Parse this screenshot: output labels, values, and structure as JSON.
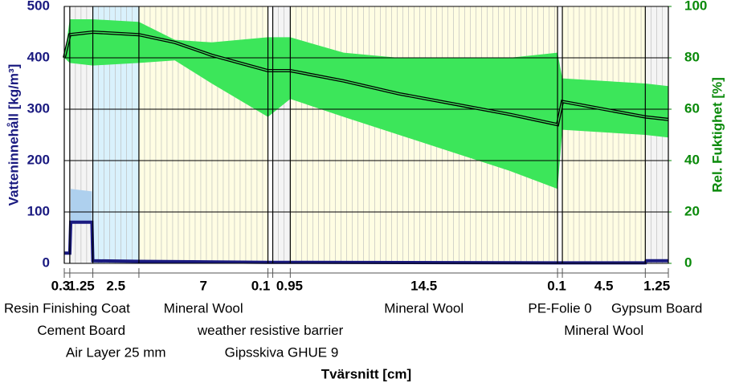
{
  "chart_data": {
    "type": "layered-profile",
    "y_label": "Vatteninnehåll [kg/m³]",
    "y2_label": "Rel. Fuktighet [%]",
    "x_label": "Tvärsnitt [cm]",
    "ylim": [
      0,
      500
    ],
    "yticks": [
      0,
      100,
      200,
      300,
      400,
      500
    ],
    "y2lim": [
      0,
      100
    ],
    "y2ticks": [
      0,
      20,
      40,
      60,
      80,
      100
    ],
    "grid": true,
    "layers": [
      {
        "name": "Resin Finishing Coat",
        "thickness": 0.3,
        "color": "#ffffff"
      },
      {
        "name": "Cement Board",
        "thickness": 1.25,
        "color": "#f4f4f4"
      },
      {
        "name": "Air Layer 25 mm",
        "thickness": 2.5,
        "color": "#d9f1fc"
      },
      {
        "name": "Mineral Wool",
        "thickness": 7,
        "color": "#fffde3"
      },
      {
        "name": "weather resistive barrier",
        "thickness": 0.1,
        "color": "#ffffff"
      },
      {
        "name": "Gipsskiva GHUE 9",
        "thickness": 0.95,
        "color": "#f4f4f4"
      },
      {
        "name": "Mineral Wool",
        "thickness": 14.5,
        "color": "#fffde3"
      },
      {
        "name": "PE-Folie 0",
        "thickness": 0.1,
        "color": "#ffffff"
      },
      {
        "name": "Mineral Wool",
        "thickness": 4.5,
        "color": "#fffde3"
      },
      {
        "name": "Gypsum Board",
        "thickness": 1.25,
        "color": "#f4f4f4"
      }
    ],
    "series": [
      {
        "axis": "y2",
        "color": "#3ce65a",
        "x": [
          0,
          0.3,
          1.55,
          4.05,
          6,
          8,
          11.05,
          12.1,
          15,
          18,
          21,
          24,
          26.6,
          26.7,
          31.2,
          32.45
        ],
        "lower": [
          80,
          78,
          77,
          78,
          79,
          70,
          57,
          64,
          57,
          50,
          43,
          36,
          29,
          52,
          50,
          49
        ],
        "upper": [
          80,
          95,
          95,
          94,
          87,
          86,
          88,
          88,
          82,
          80,
          80,
          80,
          82,
          72,
          70,
          69
        ]
      },
      {
        "axis": "y",
        "color": "#aed0ee",
        "x": [
          0.35,
          1.5
        ],
        "lower": [
          78,
          78
        ],
        "upper": [
          145,
          140
        ]
      },
      {
        "axis": "y2",
        "color": "#000000",
        "x": [
          0,
          0.3,
          1.55,
          4.05,
          6,
          8,
          11.05,
          12.1,
          15,
          18,
          21,
          24,
          26.6,
          26.7,
          31.2,
          32.45
        ],
        "values": [
          80,
          89,
          90,
          89,
          86,
          81,
          75,
          75,
          71,
          66,
          62,
          58,
          54,
          63,
          57,
          56
        ]
      },
      {
        "axis": "y",
        "color": "#1a1a80",
        "x": [
          0,
          0.3,
          0.35,
          1.5,
          1.55,
          4.05,
          11.05,
          12.1,
          26.6,
          31.2,
          31.25,
          32.45
        ],
        "values": [
          20,
          20,
          80,
          80,
          5,
          4,
          2,
          2,
          1,
          1,
          5,
          5
        ]
      }
    ]
  }
}
